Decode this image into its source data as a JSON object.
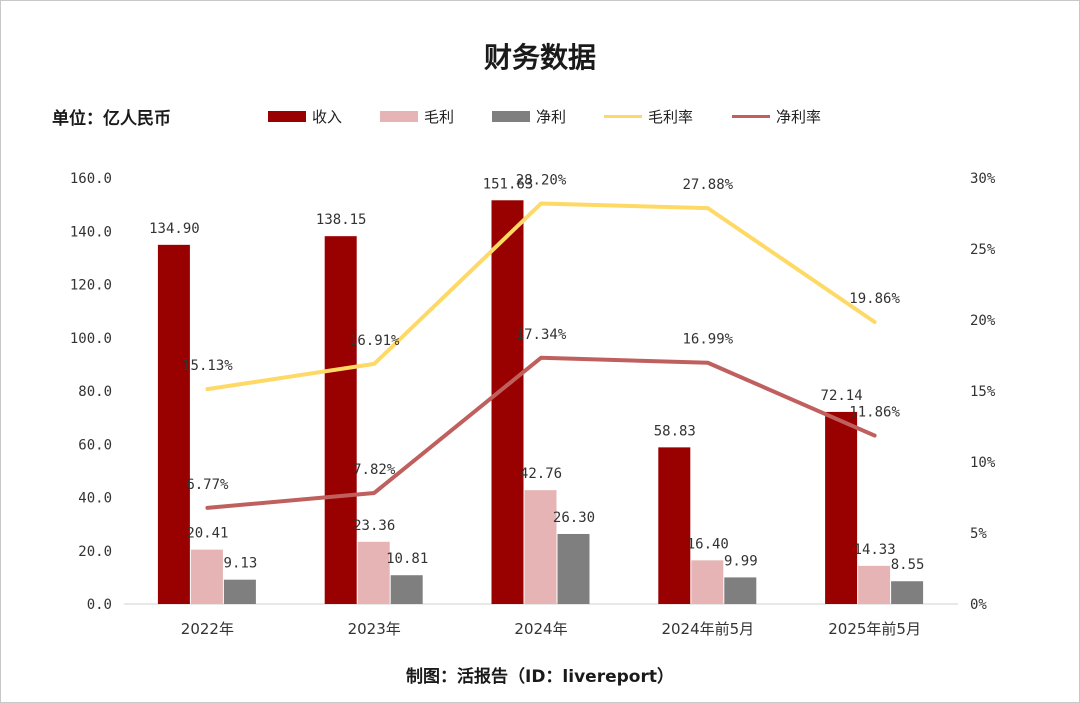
{
  "chart_data": {
    "type": "bar",
    "title": "财务数据",
    "unit_label": "单位：亿人民币",
    "source": "制图：活报告（ID：livereport）",
    "categories": [
      "2022年",
      "2023年",
      "2024年",
      "2024年前5月",
      "2025年前5月"
    ],
    "series": [
      {
        "name": "收入",
        "kind": "bar",
        "axis": "left",
        "color": "#990000",
        "values": [
          134.9,
          138.15,
          151.63,
          58.83,
          72.14
        ],
        "labels": [
          "134.90",
          "138.15",
          "151.63",
          "58.83",
          "72.14"
        ]
      },
      {
        "name": "毛利",
        "kind": "bar",
        "axis": "left",
        "color": "#e6b4b4",
        "values": [
          20.41,
          23.36,
          42.76,
          16.4,
          14.33
        ],
        "labels": [
          "20.41",
          "23.36",
          "42.76",
          "16.40",
          "14.33"
        ]
      },
      {
        "name": "净利",
        "kind": "bar",
        "axis": "left",
        "color": "#7f7f7f",
        "values": [
          9.13,
          10.81,
          26.3,
          9.99,
          8.55
        ],
        "labels": [
          "9.13",
          "10.81",
          "26.30",
          "9.99",
          "8.55"
        ]
      },
      {
        "name": "毛利率",
        "kind": "line",
        "axis": "right",
        "color": "#ffd966",
        "values": [
          15.13,
          16.91,
          28.2,
          27.88,
          19.86
        ],
        "labels": [
          "15.13%",
          "16.91%",
          "28.20%",
          "27.88%",
          "19.86%"
        ]
      },
      {
        "name": "净利率",
        "kind": "line",
        "axis": "right",
        "color": "#c0605e",
        "values": [
          6.77,
          7.82,
          17.34,
          16.99,
          11.86
        ],
        "labels": [
          "6.77%",
          "7.82%",
          "17.34%",
          "16.99%",
          "11.86%"
        ]
      }
    ],
    "y_left": {
      "min": 0,
      "max": 160,
      "ticks": [
        "0.0",
        "20.0",
        "40.0",
        "60.0",
        "80.0",
        "100.0",
        "120.0",
        "140.0",
        "160.0"
      ]
    },
    "y_right": {
      "min": 0,
      "max": 30,
      "ticks": [
        "0%",
        "5%",
        "10%",
        "15%",
        "20%",
        "25%",
        "30%"
      ]
    },
    "legend_position": "top"
  }
}
